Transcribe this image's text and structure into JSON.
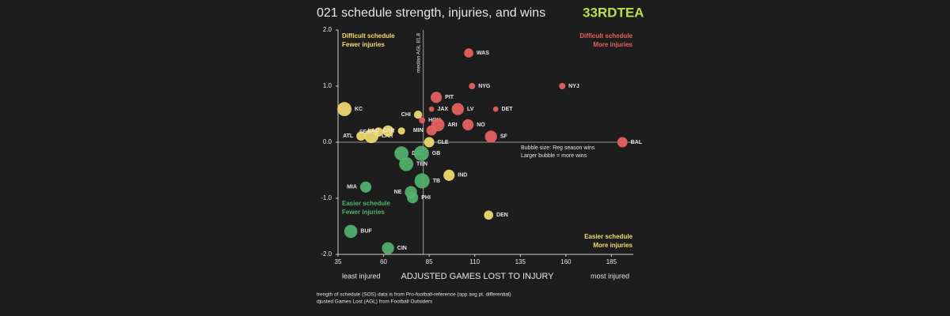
{
  "chart_data": {
    "type": "scatter",
    "title": "021 schedule strength, injuries, and wins",
    "logo": "33RDTEA",
    "xlabel": "ADJUSTED GAMES LOST TO INJURY",
    "x_left_note": "least injured",
    "x_right_note": "most injured",
    "xlim": [
      35,
      197
    ],
    "ylim": [
      -2,
      2
    ],
    "xticks": [
      35,
      60,
      85,
      110,
      135,
      160,
      185
    ],
    "yticks": [
      {
        "value": 2,
        "label": "2.0"
      },
      {
        "value": 1,
        "label": "1.0"
      },
      {
        "value": 0,
        "label": "0.0"
      },
      {
        "value": -1,
        "label": "-1.0"
      },
      {
        "value": -2,
        "label": "-2.0"
      }
    ],
    "median_x": 81.8,
    "median_label": "median AGL 81.8",
    "quadrants": [
      {
        "lines": [
          "Difficult schedule",
          "Fewer injuries"
        ],
        "color": "#f3dc72"
      },
      {
        "lines": [
          "Difficult schedule",
          "More injuries"
        ],
        "color": "#e8625e"
      },
      {
        "lines": [
          "Easier schedule",
          "Fewer injuries"
        ],
        "color": "#52b36c"
      },
      {
        "lines": [
          "Easier schedule",
          "More injuries"
        ],
        "color": "#f3dc72"
      }
    ],
    "size_note": [
      "Bubble size: Reg season wins",
      "Larger bubble = more wins"
    ],
    "footnotes": [
      "trength of schedule (SOS) data is from Pro-football-reference (opp avg pt. differential)",
      "djusted Games Lost (AGL) from Football Outsiders"
    ],
    "points": {
      "labels": [
        "KC",
        "ATL",
        "LAR",
        "SEA",
        "LAC",
        "CAR",
        "CHI",
        "HOU",
        "MIN",
        "CLE",
        "JAX",
        "PIT",
        "ARI",
        "LV",
        "NO",
        "WAS",
        "NYG",
        "DET",
        "SF",
        "NYJ",
        "BAL",
        "DAL",
        "GB",
        "TEN",
        "IND",
        "TB",
        "NE",
        "PHI",
        "MIA",
        "DEN",
        "BUF",
        "CIN"
      ],
      "x": [
        38.5,
        47.6,
        53.3,
        57.2,
        62.4,
        69.8,
        78.9,
        81.1,
        86.3,
        85,
        86.3,
        88.9,
        89.8,
        100.7,
        106.3,
        106.7,
        108.5,
        121.5,
        118.9,
        158,
        191,
        69.8,
        80.7,
        72.4,
        95.9,
        81.1,
        75,
        75.9,
        50.2,
        117.6,
        42,
        62.4
      ],
      "y": [
        0.59,
        0.11,
        0.11,
        0.18,
        0.2,
        0.2,
        0.49,
        0.39,
        0.21,
        0,
        0.59,
        0.8,
        0.31,
        0.59,
        0.31,
        1.59,
        1,
        0.59,
        0.1,
        1,
        0,
        -0.2,
        -0.2,
        -0.39,
        -0.59,
        -0.69,
        -0.89,
        -0.99,
        -0.8,
        -1.3,
        -1.59,
        -1.89
      ],
      "sizes": [
        12,
        7,
        12,
        7,
        9,
        5,
        6,
        4,
        8,
        8,
        3,
        9,
        11,
        10,
        9,
        7,
        4,
        3,
        10,
        4,
        8,
        12,
        13,
        12,
        9,
        13,
        10,
        9,
        9,
        7,
        11,
        10
      ],
      "colors": [
        "#f3dc72",
        "#f3dc72",
        "#f3dc72",
        "#f3dc72",
        "#f3dc72",
        "#f3dc72",
        "#f3dc72",
        "#e8625e",
        "#e8625e",
        "#f3dc72",
        "#e8625e",
        "#e8625e",
        "#e8625e",
        "#e8625e",
        "#e8625e",
        "#e8625e",
        "#e8625e",
        "#e8625e",
        "#e8625e",
        "#e8625e",
        "#e8625e",
        "#52b36c",
        "#52b36c",
        "#52b36c",
        "#f3dc72",
        "#52b36c",
        "#52b36c",
        "#52b36c",
        "#52b36c",
        "#f3dc72",
        "#52b36c",
        "#52b36c"
      ]
    }
  }
}
